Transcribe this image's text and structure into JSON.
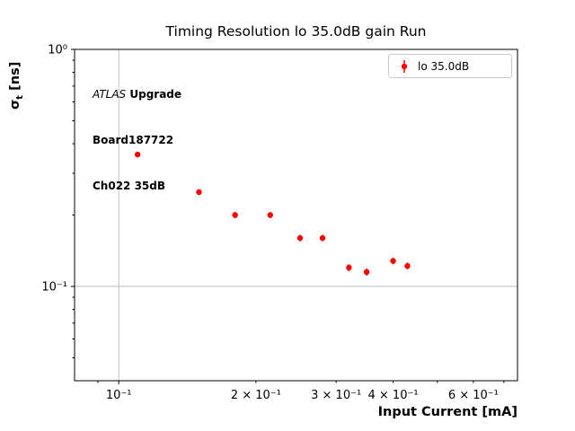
{
  "chart_data": {
    "type": "scatter",
    "title": "Timing Resolution lo 35.0dB gain Run",
    "xlabel": "Input Current [mA]",
    "ylabel": "σt [ns]",
    "ylabel_parts": {
      "symbol": "σ",
      "subscript": "t",
      "units": " [ns]"
    },
    "xscale": "log",
    "yscale": "log",
    "xlim": [
      0.08,
      0.75
    ],
    "ylim": [
      0.04,
      1.0
    ],
    "grid": true,
    "colors": {
      "grid": "#b0b0b0",
      "spine": "#000000",
      "series": "#ff0000",
      "background": "#ffffff"
    },
    "legend": {
      "position": "upper right",
      "entries": [
        {
          "label": "lo 35.0dB",
          "color": "#ff0000",
          "marker": "circle-errorbar"
        }
      ]
    },
    "series": [
      {
        "name": "lo 35.0dB",
        "color": "#ff0000",
        "x": [
          0.11,
          0.15,
          0.18,
          0.215,
          0.25,
          0.28,
          0.32,
          0.35,
          0.4,
          0.43
        ],
        "y": [
          0.36,
          0.25,
          0.2,
          0.2,
          0.16,
          0.16,
          0.12,
          0.115,
          0.128,
          0.122
        ],
        "yerr": [
          0.01,
          0.007,
          0.006,
          0.006,
          0.005,
          0.005,
          0.004,
          0.004,
          0.004,
          0.004
        ]
      }
    ],
    "x_ticks": [
      {
        "value": 0.1,
        "label": "10⁻¹",
        "major": true
      },
      {
        "value": 0.2,
        "label": "2 × 10⁻¹",
        "major": false
      },
      {
        "value": 0.3,
        "label": "3 × 10⁻¹",
        "major": false
      },
      {
        "value": 0.4,
        "label": "4 × 10⁻¹",
        "major": false
      },
      {
        "value": 0.6,
        "label": "6 × 10⁻¹",
        "major": false
      }
    ],
    "x_minor_ticks": [
      0.09,
      0.5,
      0.7
    ],
    "y_ticks": [
      {
        "value": 1.0,
        "label": "10⁰",
        "major": true
      },
      {
        "value": 0.1,
        "label": "10⁻¹",
        "major": true
      }
    ],
    "y_minor_ticks": [
      0.9,
      0.8,
      0.7,
      0.6,
      0.5,
      0.4,
      0.3,
      0.2,
      0.09,
      0.08,
      0.07,
      0.06,
      0.05
    ]
  },
  "annotations": {
    "experiment": "ATLAS",
    "upgrade": " Upgrade",
    "board": "Board187722",
    "channel": "Ch022 35dB"
  }
}
